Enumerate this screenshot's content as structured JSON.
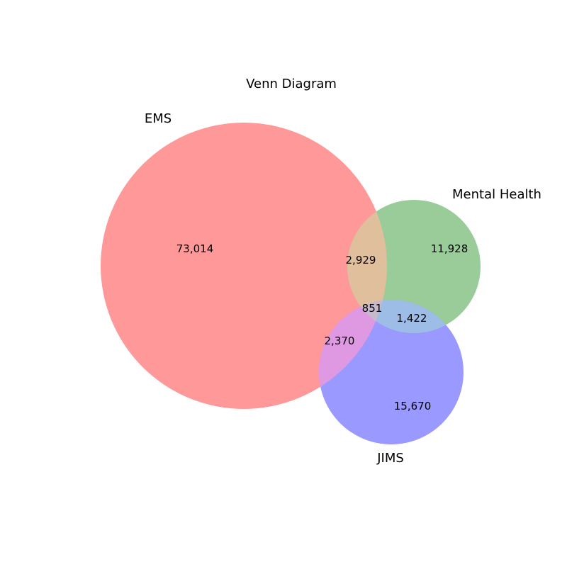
{
  "title": "Venn Diagram",
  "sets": [
    {
      "key": "ems",
      "label": "EMS",
      "color": "#ff9999"
    },
    {
      "key": "mh",
      "label": "Mental Health",
      "color": "#99cc99"
    },
    {
      "key": "jims",
      "label": "JIMS",
      "color": "#9999ff"
    }
  ],
  "regions": {
    "ems_only": "73,014",
    "mh_only": "11,928",
    "jims_only": "15,670",
    "ems_mh": "2,929",
    "ems_jims": "2,370",
    "mh_jims": "1,422",
    "all_three": "851"
  },
  "overlap_colors": {
    "ems_mh": "#e0bf9c",
    "ems_jims": "#df99e3",
    "mh_jims": "#9ebde6",
    "all_three": "#c6b9cc"
  }
}
